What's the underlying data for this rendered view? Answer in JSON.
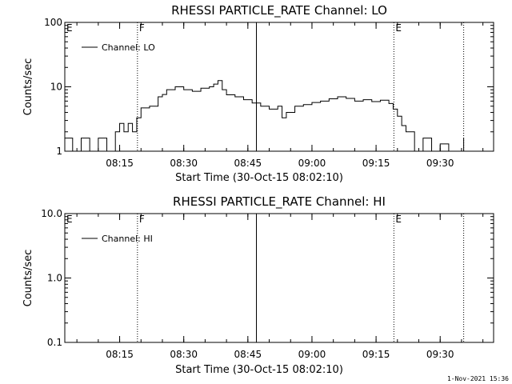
{
  "chart_data": [
    {
      "type": "line",
      "title": "RHESSI PARTICLE_RATE Channel: LO",
      "xlabel": "Start Time (30-Oct-15 08:02:10)",
      "ylabel": "Counts/sec",
      "yscale": "log",
      "ylim": [
        1,
        100
      ],
      "y_ticks": [
        1,
        10,
        100
      ],
      "y_tick_labels": [
        "1",
        "10",
        "100"
      ],
      "x_ticks": [
        "08:15",
        "08:30",
        "08:45",
        "09:00",
        "09:15",
        "09:30"
      ],
      "xlim": [
        "08:02:10",
        "09:42:30"
      ],
      "grid": false,
      "legend": {
        "placement": "top-left",
        "entries": [
          "Channel: LO"
        ]
      },
      "markers": [
        {
          "time": "08:19:10",
          "label": "F",
          "style": "dotted"
        },
        {
          "time": "08:47:00",
          "label": "",
          "style": "solid"
        },
        {
          "time": "09:19:10",
          "label": "E",
          "style": "dotted"
        },
        {
          "time": "09:35:30",
          "label": "",
          "style": "dotted"
        }
      ],
      "edge_labels": [
        {
          "label": "E",
          "side": "left"
        }
      ],
      "series": [
        {
          "name": "Channel: LO",
          "x": [
            "08:02:10",
            "08:04:00",
            "08:06:00",
            "08:08:00",
            "08:10:00",
            "08:12:00",
            "08:13:00",
            "08:14:00",
            "08:15:00",
            "08:16:00",
            "08:17:00",
            "08:18:00",
            "08:19:00",
            "08:20:00",
            "08:22:00",
            "08:24:00",
            "08:25:00",
            "08:26:00",
            "08:28:00",
            "08:30:00",
            "08:32:00",
            "08:34:00",
            "08:36:00",
            "08:37:00",
            "08:38:00",
            "08:39:00",
            "08:40:00",
            "08:42:00",
            "08:44:00",
            "08:46:00",
            "08:48:00",
            "08:50:00",
            "08:52:00",
            "08:53:00",
            "08:54:00",
            "08:56:00",
            "08:58:00",
            "09:00:00",
            "09:02:00",
            "09:04:00",
            "09:06:00",
            "09:08:00",
            "09:10:00",
            "09:12:00",
            "09:14:00",
            "09:16:00",
            "09:18:00",
            "09:19:00",
            "09:20:00",
            "09:21:00",
            "09:22:00",
            "09:24:00",
            "09:26:00",
            "09:28:00",
            "09:30:00",
            "09:32:00",
            "09:34:00",
            "09:35:30"
          ],
          "y": [
            1.6,
            1.0,
            1.6,
            1.0,
            1.6,
            1.0,
            1.0,
            2.0,
            2.7,
            2.0,
            2.7,
            2.0,
            3.3,
            4.7,
            5.0,
            7.0,
            7.6,
            9.0,
            10.0,
            9.0,
            8.5,
            9.5,
            10.0,
            11.0,
            12.5,
            9.0,
            7.5,
            7.0,
            6.3,
            5.6,
            5.0,
            4.5,
            5.0,
            3.3,
            4.0,
            5.0,
            5.3,
            5.7,
            6.0,
            6.5,
            7.0,
            6.6,
            6.0,
            6.3,
            5.9,
            6.2,
            5.5,
            4.5,
            3.5,
            2.5,
            2.0,
            1.0,
            1.6,
            1.0,
            1.3,
            1.0,
            1.0,
            1.6
          ]
        }
      ]
    },
    {
      "type": "line",
      "title": "RHESSI PARTICLE_RATE Channel: HI",
      "xlabel": "Start Time (30-Oct-15 08:02:10)",
      "ylabel": "Counts/sec",
      "yscale": "log",
      "ylim": [
        0.1,
        10
      ],
      "y_ticks": [
        0.1,
        1,
        10
      ],
      "y_tick_labels": [
        "0.1",
        "1.0",
        "10.0"
      ],
      "x_ticks": [
        "08:15",
        "08:30",
        "08:45",
        "09:00",
        "09:15",
        "09:30"
      ],
      "xlim": [
        "08:02:10",
        "09:42:30"
      ],
      "grid": false,
      "legend": {
        "placement": "top-left",
        "entries": [
          "Channel: HI"
        ]
      },
      "markers": [
        {
          "time": "08:19:10",
          "label": "F",
          "style": "dotted"
        },
        {
          "time": "08:47:00",
          "label": "",
          "style": "solid"
        },
        {
          "time": "09:19:10",
          "label": "E",
          "style": "dotted"
        },
        {
          "time": "09:35:30",
          "label": "",
          "style": "dotted"
        }
      ],
      "edge_labels": [
        {
          "label": "E",
          "side": "left"
        }
      ],
      "series": [
        {
          "name": "Channel: HI",
          "x": [],
          "y": []
        }
      ]
    }
  ],
  "footer": {
    "timestamp": "1-Nov-2021 15:36"
  },
  "colors": {
    "axes": "#000000",
    "line": "#000000",
    "background": "#ffffff"
  }
}
